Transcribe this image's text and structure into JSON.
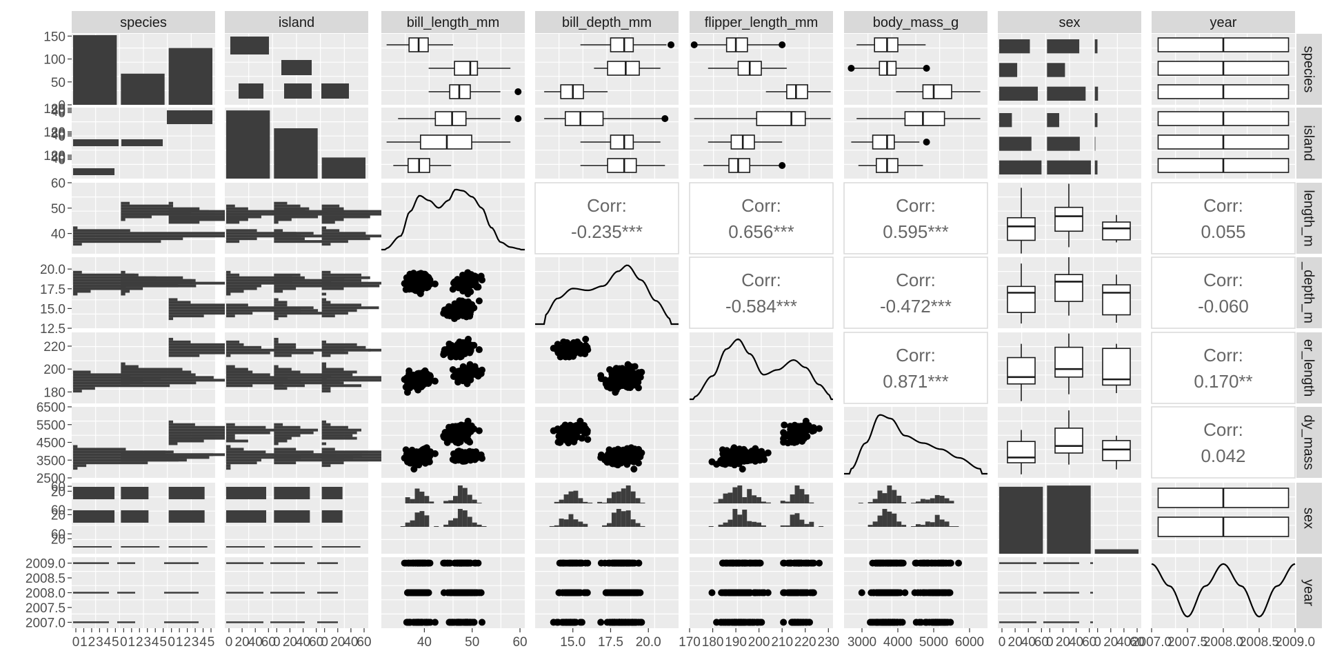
{
  "chart_data": {
    "type": "pairs",
    "variables": [
      "species",
      "island",
      "bill_length_mm",
      "bill_depth_mm",
      "flipper_length_mm",
      "body_mass_g",
      "sex",
      "year"
    ],
    "row_strips": [
      "species",
      "island",
      "length_m",
      "_depth_m",
      "er_length",
      "dy_mass",
      "sex",
      "year"
    ],
    "corr_label": "Corr:",
    "correlations": [
      {
        "row": 2,
        "col": 3,
        "text": "-0.235***"
      },
      {
        "row": 2,
        "col": 4,
        "text": "0.656***"
      },
      {
        "row": 2,
        "col": 5,
        "text": "0.595***"
      },
      {
        "row": 2,
        "col": 7,
        "text": "0.055"
      },
      {
        "row": 3,
        "col": 4,
        "text": "-0.584***"
      },
      {
        "row": 3,
        "col": 5,
        "text": "-0.472***"
      },
      {
        "row": 3,
        "col": 7,
        "text": "-0.060"
      },
      {
        "row": 4,
        "col": 5,
        "text": "0.871***"
      },
      {
        "row": 4,
        "col": 7,
        "text": "0.170**"
      },
      {
        "row": 5,
        "col": 7,
        "text": "0.042"
      }
    ],
    "y_axes": [
      {
        "range": [
          0,
          155
        ],
        "ticks": [
          "0",
          "50",
          "100",
          "150"
        ]
      },
      {
        "range": [
          0,
          1
        ],
        "ticks": [
          "120",
          "80",
          "40",
          "0",
          "120",
          "80",
          "40",
          "0",
          "120",
          "80",
          "40",
          "0"
        ],
        "tick_pos": [
          0.99,
          0.97,
          0.95,
          0.93,
          0.66,
          0.64,
          0.62,
          0.6,
          0.33,
          0.31,
          0.29,
          0.27
        ]
      },
      {
        "range": [
          32,
          60
        ],
        "ticks": [
          "40",
          "50",
          "60"
        ]
      },
      {
        "range": [
          12.5,
          21.5
        ],
        "ticks": [
          "12.5",
          "15.0",
          "17.5",
          "20.0"
        ]
      },
      {
        "range": [
          170,
          232
        ],
        "ticks": [
          "180",
          "200",
          "220"
        ]
      },
      {
        "range": [
          2500,
          6500
        ],
        "ticks": [
          "2500",
          "3500",
          "4500",
          "5500",
          "6500"
        ]
      },
      {
        "range": [
          0,
          1
        ],
        "ticks": [
          "60",
          "20",
          "60",
          "20",
          "60",
          "20"
        ],
        "tick_pos": [
          0.95,
          0.88,
          0.62,
          0.55,
          0.28,
          0.21
        ]
      },
      {
        "range": [
          2006.8,
          2009.2
        ],
        "ticks": [
          "2007.0",
          "2007.5",
          "2008.0",
          "2008.5",
          "2009.0"
        ]
      }
    ],
    "x_axes": [
      {
        "ticks": [
          "0",
          "1",
          "2",
          "3",
          "4",
          "5",
          "0",
          "1",
          "2",
          "3",
          "4",
          "5",
          "0",
          "1",
          "2",
          "3",
          "4",
          "5"
        ]
      },
      {
        "ticks": [
          "0",
          "20",
          "40",
          "60",
          "0",
          "20",
          "40",
          "60",
          "0",
          "20",
          "40",
          "60"
        ]
      },
      {
        "range": [
          31,
          61
        ],
        "ticks": [
          "40",
          "50",
          "60"
        ]
      },
      {
        "range": [
          12.5,
          22
        ],
        "ticks": [
          "15.0",
          "17.5",
          "20.0"
        ]
      },
      {
        "range": [
          170,
          232
        ],
        "ticks": [
          "170",
          "180",
          "190",
          "200",
          "210",
          "220",
          "230"
        ]
      },
      {
        "range": [
          2500,
          6500
        ],
        "ticks": [
          "3000",
          "4000",
          "5000",
          "6000"
        ]
      },
      {
        "ticks": [
          "0",
          "20",
          "40",
          "60",
          "0",
          "20",
          "40",
          "60",
          "0",
          "20",
          "40",
          "60"
        ]
      },
      {
        "range": [
          2007,
          2009
        ],
        "ticks": [
          "2007.0",
          "2007.5",
          "2008.0",
          "2008.5",
          "2009.0"
        ]
      }
    ],
    "counts": {
      "species": [
        152,
        68,
        124
      ],
      "island": [
        168,
        124,
        52
      ],
      "sex": [
        165,
        168,
        11
      ],
      "species_by_island": [
        [
          44,
          56,
          52
        ],
        [
          68,
          0,
          0
        ],
        [
          124,
          0,
          0
        ]
      ],
      "island_by_sex": [
        [
          80,
          83,
          5
        ],
        [
          61,
          62,
          1
        ],
        [
          24,
          23,
          5
        ]
      ],
      "species_by_sex": [
        [
          73,
          73,
          6
        ],
        [
          34,
          34,
          0
        ],
        [
          58,
          61,
          5
        ]
      ]
    },
    "boxplots": {
      "bill_length_by_species": [
        {
          "lo": 32.1,
          "q1": 36.8,
          "med": 38.8,
          "q3": 40.8,
          "hi": 46.0,
          "out": []
        },
        {
          "lo": 40.9,
          "q1": 46.3,
          "med": 49.6,
          "q3": 51.1,
          "hi": 58.0,
          "out": []
        },
        {
          "lo": 40.9,
          "q1": 45.3,
          "med": 47.3,
          "q3": 49.6,
          "hi": 55.9,
          "out": [
            59.6
          ]
        }
      ],
      "bill_depth_by_species": [
        {
          "lo": 15.5,
          "q1": 17.5,
          "med": 18.4,
          "q3": 19.0,
          "hi": 21.2,
          "out": [
            21.5
          ]
        },
        {
          "lo": 16.4,
          "q1": 17.3,
          "med": 18.5,
          "q3": 19.4,
          "hi": 20.8,
          "out": []
        },
        {
          "lo": 13.1,
          "q1": 14.2,
          "med": 15.0,
          "q3": 15.7,
          "hi": 17.3,
          "out": []
        }
      ],
      "flipper_by_species": [
        {
          "lo": 172,
          "q1": 186,
          "med": 190,
          "q3": 195,
          "hi": 210,
          "out": [
            172,
            210
          ]
        },
        {
          "lo": 178,
          "q1": 191,
          "med": 196,
          "q3": 201,
          "hi": 212,
          "out": []
        },
        {
          "lo": 203,
          "q1": 212,
          "med": 216,
          "q3": 221,
          "hi": 231,
          "out": []
        }
      ],
      "mass_by_species": [
        {
          "lo": 2850,
          "q1": 3350,
          "med": 3700,
          "q3": 4000,
          "hi": 4775,
          "out": []
        },
        {
          "lo": 2700,
          "q1": 3487,
          "med": 3700,
          "q3": 3950,
          "hi": 4800,
          "out": [
            2700,
            4800
          ]
        },
        {
          "lo": 3950,
          "q1": 4700,
          "med": 5000,
          "q3": 5500,
          "hi": 6300,
          "out": []
        }
      ],
      "bill_length_by_island": [
        {
          "lo": 34.5,
          "q1": 42.3,
          "med": 45.8,
          "q3": 48.7,
          "hi": 55.9,
          "out": [
            59.6
          ]
        },
        {
          "lo": 32.1,
          "q1": 39.2,
          "med": 44.7,
          "q3": 49.9,
          "hi": 58.0,
          "out": []
        },
        {
          "lo": 33.5,
          "q1": 36.6,
          "med": 38.9,
          "q3": 41.1,
          "hi": 45.6,
          "out": []
        }
      ],
      "bill_depth_by_island": [
        {
          "lo": 13.1,
          "q1": 14.5,
          "med": 15.5,
          "q3": 17.0,
          "hi": 21.1,
          "out": [
            21.1
          ]
        },
        {
          "lo": 15.5,
          "q1": 17.5,
          "med": 18.4,
          "q3": 19.0,
          "hi": 20.8,
          "out": []
        },
        {
          "lo": 15.5,
          "q1": 17.3,
          "med": 18.4,
          "q3": 19.2,
          "hi": 21.1,
          "out": []
        }
      ],
      "flipper_by_island": [
        {
          "lo": 172,
          "q1": 199,
          "med": 214,
          "q3": 220,
          "hi": 231,
          "out": []
        },
        {
          "lo": 178,
          "q1": 188,
          "med": 193,
          "q3": 198,
          "hi": 210,
          "out": []
        },
        {
          "lo": 176,
          "q1": 187,
          "med": 191,
          "q3": 196,
          "hi": 210,
          "out": [
            210
          ]
        }
      ],
      "mass_by_island": [
        {
          "lo": 2850,
          "q1": 4200,
          "med": 4700,
          "q3": 5300,
          "hi": 6300,
          "out": []
        },
        {
          "lo": 2700,
          "q1": 3300,
          "med": 3700,
          "q3": 3900,
          "hi": 4600,
          "out": [
            4800
          ]
        },
        {
          "lo": 2900,
          "q1": 3400,
          "med": 3700,
          "q3": 4000,
          "hi": 4700,
          "out": []
        }
      ],
      "bill_length_by_sex": [
        {
          "lo": 32.1,
          "q1": 37.3,
          "med": 42.8,
          "q3": 46.2,
          "hi": 58.0
        },
        {
          "lo": 34.6,
          "q1": 40.9,
          "med": 46.8,
          "q3": 50.3,
          "hi": 59.6
        },
        {
          "lo": 36.5,
          "q1": 37.5,
          "med": 42.0,
          "q3": 44.5,
          "hi": 47.3
        }
      ],
      "bill_depth_by_sex": [
        {
          "lo": 13.1,
          "q1": 14.5,
          "med": 17.0,
          "q3": 17.8,
          "hi": 20.7
        },
        {
          "lo": 14.1,
          "q1": 15.9,
          "med": 18.4,
          "q3": 19.3,
          "hi": 21.5
        },
        {
          "lo": 13.2,
          "q1": 14.2,
          "med": 17.0,
          "q3": 18.0,
          "hi": 19.3
        }
      ],
      "flipper_by_sex": [
        {
          "lo": 172,
          "q1": 187,
          "med": 193,
          "q3": 210,
          "hi": 222
        },
        {
          "lo": 178,
          "q1": 193,
          "med": 200,
          "q3": 219,
          "hi": 231
        },
        {
          "lo": 179,
          "q1": 186,
          "med": 191,
          "q3": 218,
          "hi": 222
        }
      ],
      "mass_by_sex": [
        {
          "lo": 2700,
          "q1": 3350,
          "med": 3650,
          "q3": 4550,
          "hi": 5200
        },
        {
          "lo": 3250,
          "q1": 3900,
          "med": 4300,
          "q3": 5300,
          "hi": 6300
        },
        {
          "lo": 2975,
          "q1": 3475,
          "med": 4100,
          "q3": 4600,
          "hi": 4875
        }
      ]
    },
    "density": {
      "bill_length": [
        [
          32,
          0.02
        ],
        [
          35,
          0.22
        ],
        [
          37,
          0.62
        ],
        [
          39,
          0.88
        ],
        [
          41,
          0.8
        ],
        [
          43,
          0.68
        ],
        [
          45,
          0.8
        ],
        [
          46.5,
          0.98
        ],
        [
          48,
          0.96
        ],
        [
          50,
          0.86
        ],
        [
          52,
          0.68
        ],
        [
          54,
          0.36
        ],
        [
          56,
          0.12
        ],
        [
          58,
          0.04
        ],
        [
          60,
          0.01
        ]
      ],
      "bill_depth": [
        [
          13.1,
          0.14
        ],
        [
          14,
          0.42
        ],
        [
          15,
          0.58
        ],
        [
          16,
          0.55
        ],
        [
          17,
          0.62
        ],
        [
          18,
          0.86
        ],
        [
          18.6,
          0.96
        ],
        [
          19.5,
          0.72
        ],
        [
          20.5,
          0.38
        ],
        [
          21.5,
          0.08
        ]
      ],
      "flipper_length": [
        [
          172,
          0.04
        ],
        [
          180,
          0.38
        ],
        [
          186,
          0.82
        ],
        [
          191,
          0.98
        ],
        [
          196,
          0.74
        ],
        [
          202,
          0.4
        ],
        [
          208,
          0.48
        ],
        [
          215,
          0.64
        ],
        [
          220,
          0.52
        ],
        [
          226,
          0.24
        ],
        [
          231,
          0.06
        ]
      ],
      "body_mass": [
        [
          2700,
          0.08
        ],
        [
          3100,
          0.5
        ],
        [
          3500,
          0.96
        ],
        [
          3800,
          0.9
        ],
        [
          4200,
          0.62
        ],
        [
          4700,
          0.5
        ],
        [
          5200,
          0.4
        ],
        [
          5700,
          0.26
        ],
        [
          6300,
          0.08
        ]
      ],
      "year": [
        [
          2007,
          0.98
        ],
        [
          2007.25,
          0.62
        ],
        [
          2007.5,
          0.12
        ],
        [
          2007.75,
          0.62
        ],
        [
          2008,
          0.98
        ],
        [
          2008.25,
          0.62
        ],
        [
          2008.5,
          0.12
        ],
        [
          2008.75,
          0.62
        ],
        [
          2009,
          0.98
        ]
      ]
    },
    "continuous_ranges": {
      "bill_length_mm": [
        32.1,
        59.6
      ],
      "bill_depth_mm": [
        13.1,
        21.5
      ],
      "flipper_length_mm": [
        172,
        231
      ],
      "body_mass_g": [
        2700,
        6300
      ]
    }
  }
}
